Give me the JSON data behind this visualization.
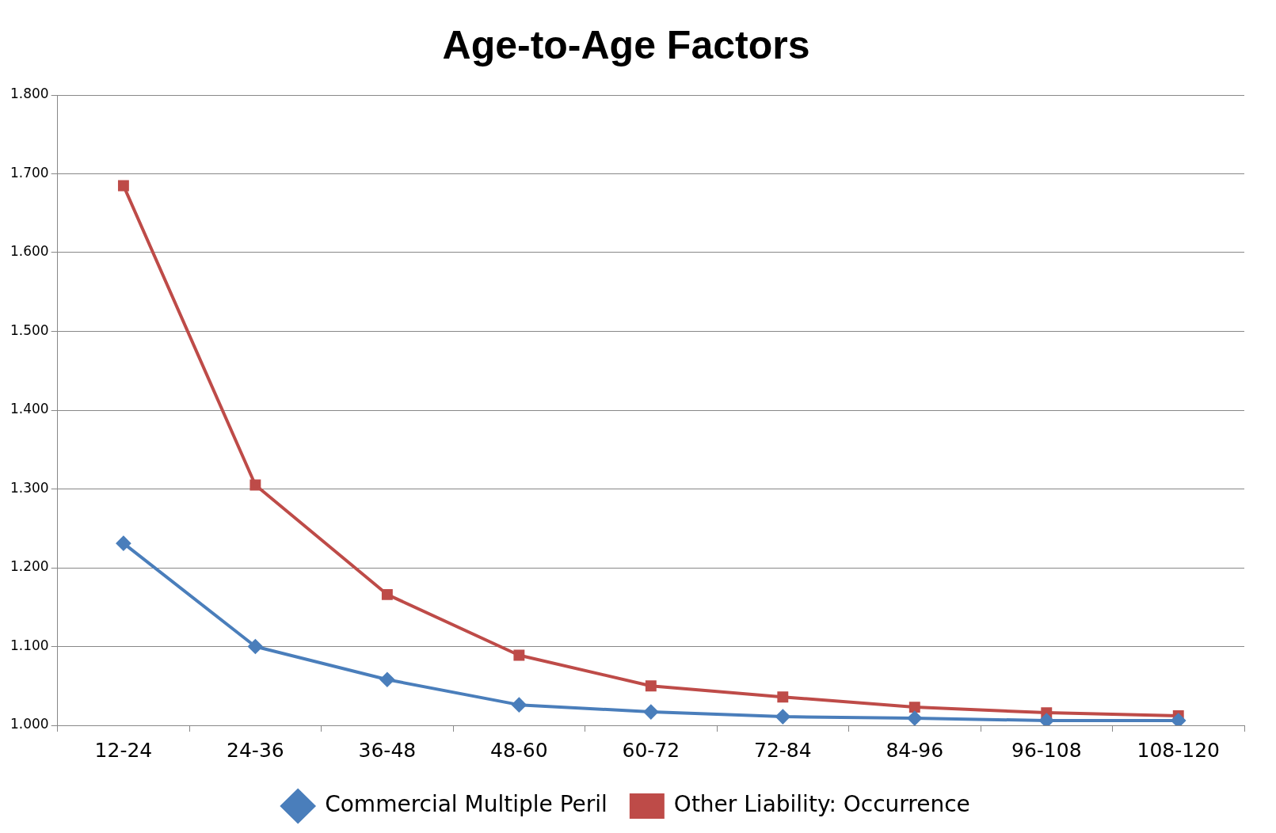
{
  "chart_data": {
    "type": "line",
    "title": "Age-to-Age Factors",
    "categories": [
      "12-24",
      "24-36",
      "36-48",
      "48-60",
      "60-72",
      "72-84",
      "84-96",
      "96-108",
      "108-120"
    ],
    "series": [
      {
        "name": "Commercial Multiple Peril",
        "color": "#4a7ebb",
        "marker": "diamond",
        "values": [
          1.231,
          1.1,
          1.058,
          1.026,
          1.017,
          1.011,
          1.009,
          1.006,
          1.006
        ]
      },
      {
        "name": "Other Liability: Occurrence",
        "color": "#be4b48",
        "marker": "square",
        "values": [
          1.685,
          1.305,
          1.166,
          1.089,
          1.05,
          1.036,
          1.023,
          1.016,
          1.012
        ]
      }
    ],
    "ylim": [
      1,
      1.8
    ],
    "yticks": [
      {
        "value": 1,
        "label": "1.000"
      },
      {
        "value": 1.1,
        "label": "1.100"
      },
      {
        "value": 1.2,
        "label": "1.200"
      },
      {
        "value": 1.3,
        "label": "1.300"
      },
      {
        "value": 1.4,
        "label": "1.400"
      },
      {
        "value": 1.5,
        "label": "1.500"
      },
      {
        "value": 1.6,
        "label": "1.600"
      },
      {
        "value": 1.7,
        "label": "1.700"
      },
      {
        "value": 1.8,
        "label": "1.800"
      }
    ],
    "grid": "y",
    "legend": "bottom",
    "line_style": "solid"
  }
}
